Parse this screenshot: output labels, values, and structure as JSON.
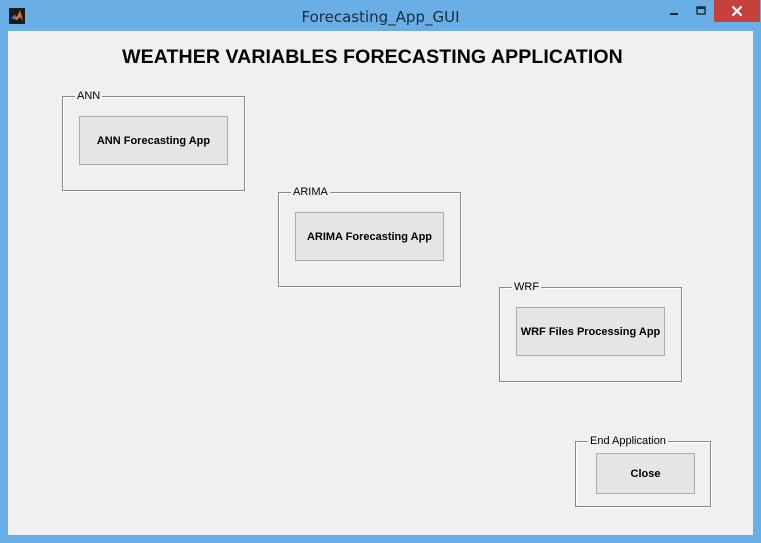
{
  "window": {
    "title": "Forecasting_App_GUI"
  },
  "heading": "WEATHER VARIABLES FORECASTING APPLICATION",
  "panels": {
    "ann": {
      "title": "ANN",
      "button_label": "ANN Forecasting App"
    },
    "arima": {
      "title": "ARIMA",
      "button_label": "ARIMA Forecasting App"
    },
    "wrf": {
      "title": "WRF",
      "button_label": "WRF Files Processing App"
    },
    "end": {
      "title": "End Application",
      "button_label": "Close"
    }
  },
  "icons": {
    "app": "matlab-icon",
    "minimize": "minimize-icon",
    "maximize": "maximize-icon",
    "close": "close-icon"
  },
  "colors": {
    "titlebar": "#6aaee6",
    "close_button": "#c7413c",
    "client_background": "#f0f0f0"
  }
}
